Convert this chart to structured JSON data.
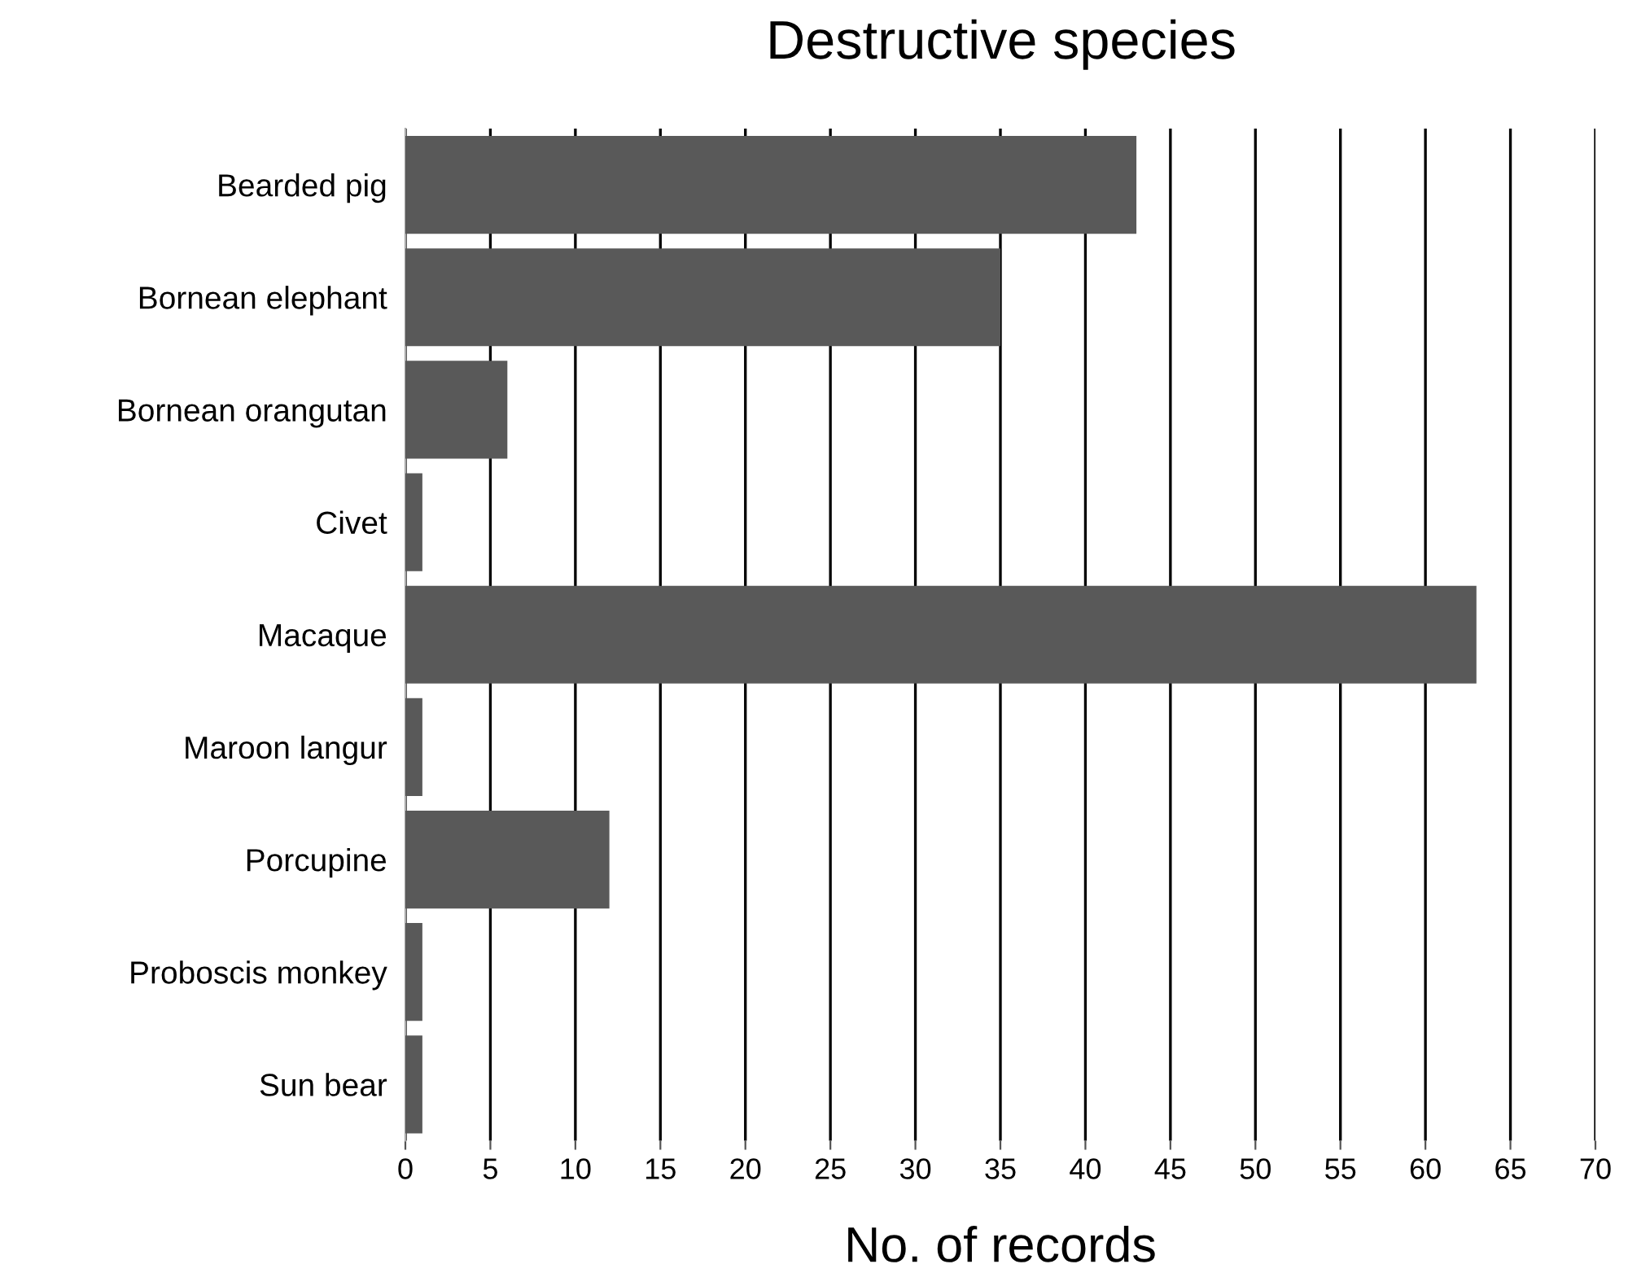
{
  "chart_data": {
    "type": "bar",
    "orientation": "horizontal",
    "title": "Destructive species",
    "xlabel": "No. of records",
    "categories": [
      "Bearded pig",
      "Bornean elephant",
      "Bornean orangutan",
      "Civet",
      "Macaque",
      "Maroon langur",
      "Porcupine",
      "Proboscis monkey",
      "Sun bear"
    ],
    "values": [
      43,
      35,
      6,
      1,
      63,
      1,
      12,
      1,
      1
    ],
    "color": "#595959",
    "xlim": [
      0,
      70
    ],
    "xticks": [
      0,
      5,
      10,
      15,
      20,
      25,
      30,
      35,
      40,
      45,
      50,
      55,
      60,
      65,
      70
    ],
    "grid": "x",
    "legend": false
  }
}
